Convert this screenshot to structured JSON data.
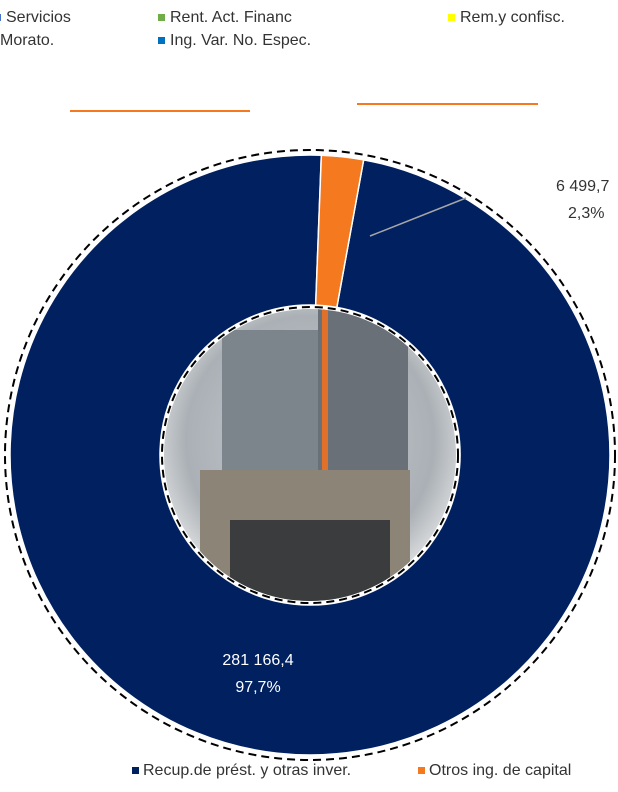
{
  "other_legend": {
    "items": [
      {
        "label": "Servicios",
        "color": "#4472c4"
      },
      {
        "label": "Morato.",
        "color": "#7f7f7f"
      },
      {
        "label": "Rent. Act. Financ",
        "color": "#70ad47"
      },
      {
        "label": "Rem.y confisc.",
        "color": "#ffff00"
      },
      {
        "label": "Ing. Var. No. Espec.",
        "color": "#0070c0"
      }
    ]
  },
  "chart_data": {
    "type": "pie",
    "donut": true,
    "categories": [
      "Recup.de prést. y otras inver.",
      "Otros ing. de capital"
    ],
    "values": [
      281166.4,
      6499.7
    ],
    "value_labels": [
      "281 166,4",
      "6 499,7"
    ],
    "percent_values": [
      97.7,
      2.3
    ],
    "percent_labels": [
      "97,7%",
      "2,3%"
    ],
    "colors": [
      "#002060",
      "#f4791f"
    ],
    "legend": "bottom"
  }
}
